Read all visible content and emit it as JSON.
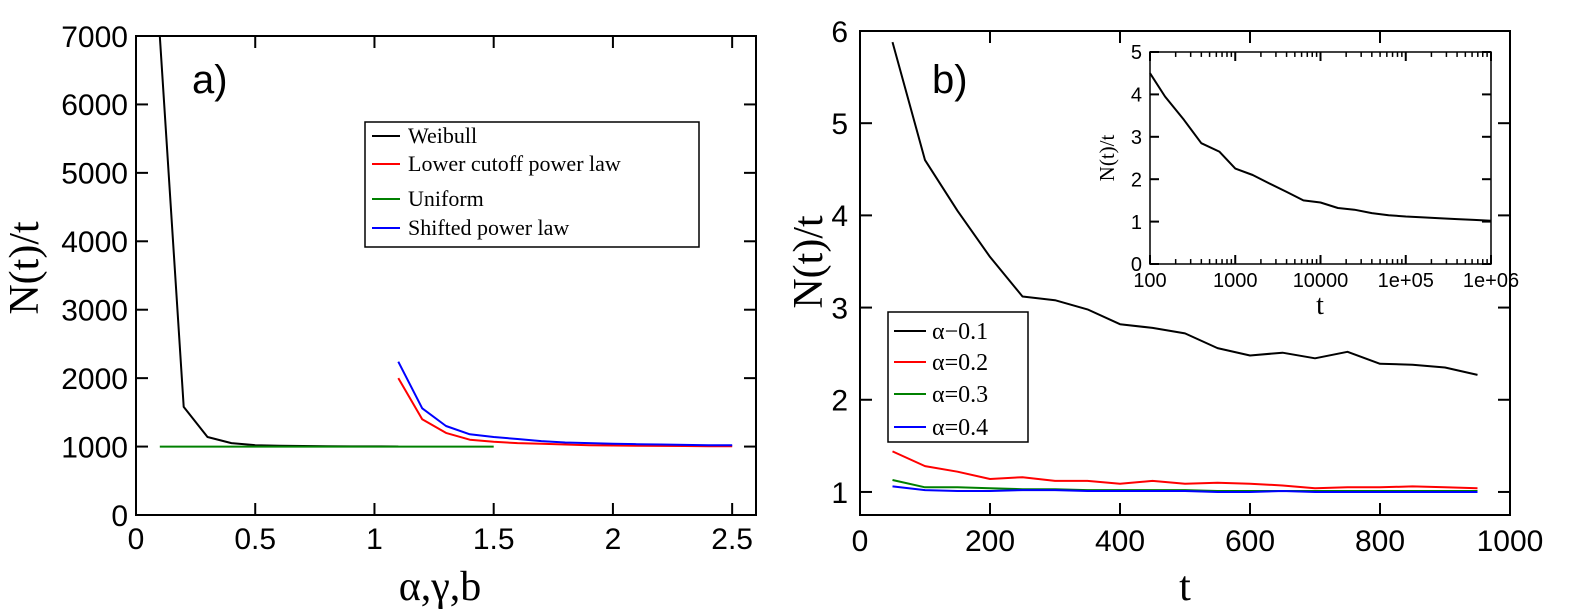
{
  "chart_data": [
    {
      "type": "line",
      "panel_label": "a)",
      "xlabel": "α,γ,b",
      "ylabel": "N(t)/t",
      "xlim": [
        0,
        2.6
      ],
      "ylim": [
        0,
        7000
      ],
      "xticks": [
        0,
        0.5,
        1,
        1.5,
        2,
        2.5
      ],
      "xtick_labels": [
        "0",
        "0.5",
        "1",
        "1.5",
        "2",
        "2.5"
      ],
      "yticks": [
        0,
        1000,
        2000,
        3000,
        4000,
        5000,
        6000,
        7000
      ],
      "ytick_labels": [
        "0",
        "1000",
        "2000",
        "3000",
        "4000",
        "5000",
        "6000",
        "7000"
      ],
      "legend_position": "upper-right",
      "series": [
        {
          "name": "Weibull",
          "color": "#000000",
          "x": [
            0.1,
            0.2,
            0.3,
            0.4,
            0.5,
            0.6,
            0.7,
            0.8,
            0.9,
            1.0,
            1.1
          ],
          "y": [
            7000,
            1580,
            1140,
            1050,
            1020,
            1012,
            1008,
            1005,
            1003,
            1002,
            1001
          ]
        },
        {
          "name": "Lower cutoff power law",
          "color": "#ff0000",
          "x": [
            1.1,
            1.2,
            1.3,
            1.4,
            1.5,
            1.6,
            1.7,
            1.8,
            1.9,
            2.0,
            2.1,
            2.2,
            2.3,
            2.4,
            2.5
          ],
          "y": [
            2000,
            1400,
            1200,
            1100,
            1070,
            1050,
            1040,
            1030,
            1020,
            1015,
            1012,
            1010,
            1008,
            1006,
            1005
          ]
        },
        {
          "name": "Uniform",
          "color": "#008000",
          "x": [
            0.1,
            0.5,
            1.0,
            1.5
          ],
          "y": [
            1000,
            1000,
            1000,
            1000
          ]
        },
        {
          "name": "Shifted power law",
          "color": "#0000ff",
          "x": [
            1.1,
            1.2,
            1.3,
            1.4,
            1.5,
            1.6,
            1.7,
            1.8,
            1.9,
            2.0,
            2.1,
            2.2,
            2.3,
            2.4,
            2.5
          ],
          "y": [
            2240,
            1560,
            1300,
            1180,
            1140,
            1110,
            1080,
            1060,
            1050,
            1040,
            1035,
            1030,
            1025,
            1020,
            1020
          ]
        }
      ]
    },
    {
      "type": "line",
      "panel_label": "b)",
      "xlabel": "t",
      "ylabel": "N(t)/t",
      "xlim": [
        0,
        1000
      ],
      "ylim": [
        0.75,
        6
      ],
      "xticks": [
        0,
        200,
        400,
        600,
        800,
        1000
      ],
      "xtick_labels": [
        "0",
        "200",
        "400",
        "600",
        "800",
        "1000"
      ],
      "yticks": [
        1,
        2,
        3,
        4,
        5,
        6
      ],
      "ytick_labels": [
        "1",
        "2",
        "3",
        "4",
        "5",
        "6"
      ],
      "legend_position": "lower-left",
      "series": [
        {
          "name": "α−0.1",
          "color": "#000000",
          "x": [
            50,
            100,
            150,
            200,
            250,
            300,
            350,
            400,
            450,
            500,
            550,
            600,
            650,
            700,
            750,
            800,
            850,
            900,
            950
          ],
          "y": [
            5.88,
            4.6,
            4.05,
            3.55,
            3.12,
            3.08,
            2.98,
            2.82,
            2.78,
            2.72,
            2.56,
            2.48,
            2.51,
            2.45,
            2.52,
            2.39,
            2.38,
            2.35,
            2.27
          ]
        },
        {
          "name": "α=0.2",
          "color": "#ff0000",
          "x": [
            50,
            100,
            150,
            200,
            250,
            300,
            350,
            400,
            450,
            500,
            550,
            600,
            650,
            700,
            750,
            800,
            850,
            900,
            950
          ],
          "y": [
            1.44,
            1.28,
            1.22,
            1.14,
            1.16,
            1.12,
            1.12,
            1.09,
            1.12,
            1.09,
            1.1,
            1.09,
            1.07,
            1.04,
            1.05,
            1.05,
            1.06,
            1.05,
            1.04
          ]
        },
        {
          "name": "α=0.3",
          "color": "#008000",
          "x": [
            50,
            100,
            150,
            200,
            250,
            300,
            350,
            400,
            450,
            500,
            550,
            600,
            650,
            700,
            750,
            800,
            850,
            900,
            950
          ],
          "y": [
            1.13,
            1.05,
            1.05,
            1.04,
            1.03,
            1.03,
            1.02,
            1.02,
            1.02,
            1.02,
            1.01,
            1.01,
            1.01,
            1.01,
            1.01,
            1.01,
            1.01,
            1.01,
            1.01
          ]
        },
        {
          "name": "α=0.4",
          "color": "#0000ff",
          "x": [
            50,
            100,
            150,
            200,
            250,
            300,
            350,
            400,
            450,
            500,
            550,
            600,
            650,
            700,
            750,
            800,
            850,
            900,
            950
          ],
          "y": [
            1.06,
            1.02,
            1.01,
            1.01,
            1.02,
            1.02,
            1.01,
            1.01,
            1.01,
            1.01,
            1.0,
            1.0,
            1.01,
            1.0,
            1.0,
            1.0,
            1.0,
            1.0,
            1.0
          ]
        }
      ],
      "inset": {
        "type": "line",
        "xscale": "log",
        "xlabel": "t",
        "ylabel": "N(t)/t",
        "xlim": [
          100,
          1000000
        ],
        "ylim": [
          0,
          5
        ],
        "xticks": [
          100,
          1000,
          10000,
          100000,
          1000000
        ],
        "xtick_labels": [
          "100",
          "1000",
          "10000",
          "1e+05",
          "1e+06"
        ],
        "yticks": [
          0,
          1,
          2,
          3,
          4,
          5
        ],
        "ytick_labels": [
          "0",
          "1",
          "2",
          "3",
          "4",
          "5"
        ],
        "series": [
          {
            "name": "N(t)/t",
            "color": "#000000",
            "x": [
              100,
              150,
              250,
              400,
              650,
              1000,
              1600,
              2500,
              4000,
              6300,
              10000,
              16000,
              25000,
              40000,
              63000,
              100000,
              160000,
              250000,
              400000,
              630000,
              1000000
            ],
            "y": [
              4.5,
              3.95,
              3.4,
              2.85,
              2.65,
              2.25,
              2.1,
              1.9,
              1.7,
              1.5,
              1.45,
              1.32,
              1.28,
              1.2,
              1.15,
              1.12,
              1.1,
              1.08,
              1.06,
              1.04,
              1.02
            ]
          }
        ]
      }
    }
  ]
}
